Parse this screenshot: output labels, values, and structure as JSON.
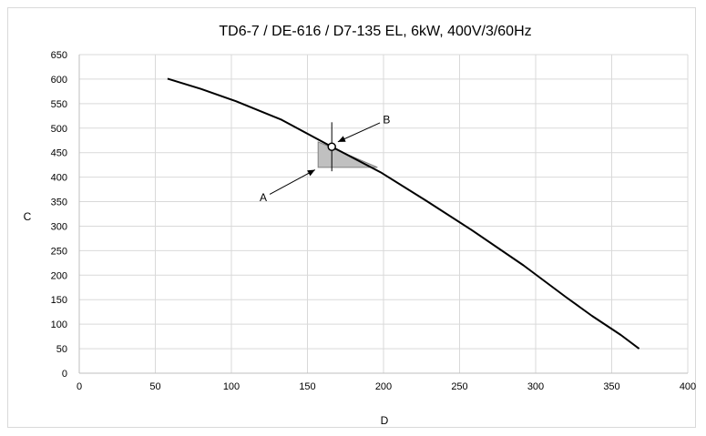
{
  "chart_data": {
    "type": "line",
    "title": "TD6-7 / DE-616 / D7-135 EL, 6kW, 400V/3/60Hz",
    "xlabel": "D",
    "ylabel": "C",
    "xlim": [
      0,
      400
    ],
    "ylim": [
      0,
      650
    ],
    "xticks": [
      "0",
      "50",
      "100",
      "150",
      "200",
      "250",
      "300",
      "350",
      "400"
    ],
    "yticks": [
      "0",
      "50",
      "100",
      "150",
      "200",
      "250",
      "300",
      "350",
      "400",
      "450",
      "500",
      "550",
      "600",
      "650"
    ],
    "grid": true,
    "series": [
      {
        "color": "#000000",
        "x": [
          58,
          80,
          103,
          133,
          166,
          198,
          228,
          258,
          292,
          320,
          337,
          356,
          368
        ],
        "y": [
          601,
          580,
          555,
          517,
          462,
          410,
          352,
          292,
          220,
          155,
          117,
          78,
          50
        ]
      }
    ],
    "operating_point": {
      "x": 166,
      "y": 462
    },
    "tolerance_region": {
      "x1": 157,
      "x2": 196,
      "y1": 420,
      "y2": 472,
      "color": "#c0c0c0"
    },
    "annotations": [
      {
        "label": "A",
        "text_at": [
          121,
          358
        ],
        "arrow_to": [
          155,
          415
        ]
      },
      {
        "label": "B",
        "text_at": [
          202,
          517
        ],
        "arrow_to": [
          170,
          472
        ]
      }
    ]
  }
}
